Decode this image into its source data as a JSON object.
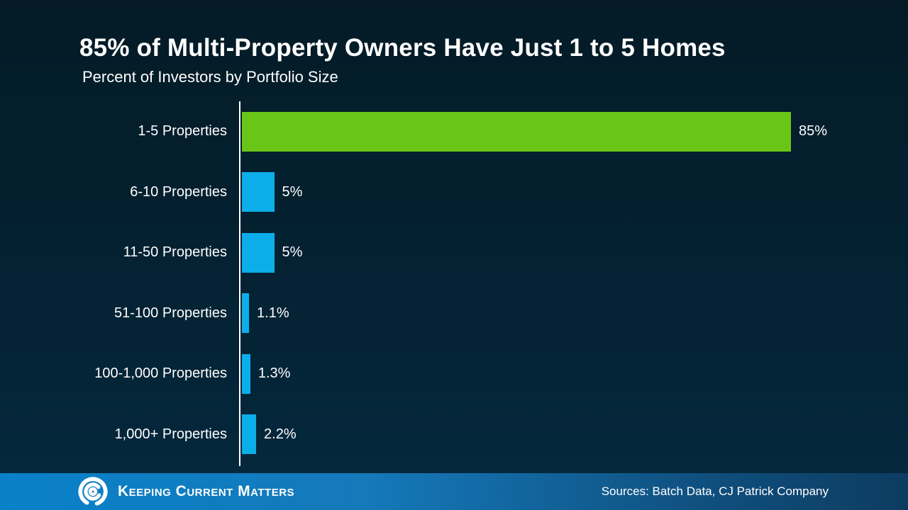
{
  "header": {
    "title": "85% of Multi-Property Owners Have Just 1 to 5 Homes",
    "subtitle": "Percent of Investors by Portfolio Size"
  },
  "chart_data": {
    "type": "bar",
    "orientation": "horizontal",
    "title": "85% of Multi-Property Owners Have Just 1 to 5 Homes",
    "subtitle": "Percent of Investors by Portfolio Size",
    "categories": [
      "1-5 Properties",
      "6-10 Properties",
      "11-50 Properties",
      "51-100 Properties",
      "100-1,000 Properties",
      "1,000+ Properties"
    ],
    "values": [
      85,
      5,
      5,
      1.1,
      1.3,
      2.2
    ],
    "value_labels": [
      "85%",
      "5%",
      "5%",
      "1.1%",
      "1.3%",
      "2.2%"
    ],
    "xlim": [
      0,
      93
    ],
    "grid": false,
    "legend": false,
    "highlight_index": 0,
    "colors": {
      "highlight_bar": "#69c617",
      "default_bar": "#0caeea",
      "axis_line": "#ffffff",
      "label_text": "#ffffff"
    }
  },
  "footer": {
    "brand_label": "Keeping Current Matters",
    "logo_icon": "kcm-swirl-logo",
    "sources": "Sources: Batch Data, CJ Patrick Company",
    "background_left": "#0981c9",
    "background_right": "#0d3c60"
  }
}
